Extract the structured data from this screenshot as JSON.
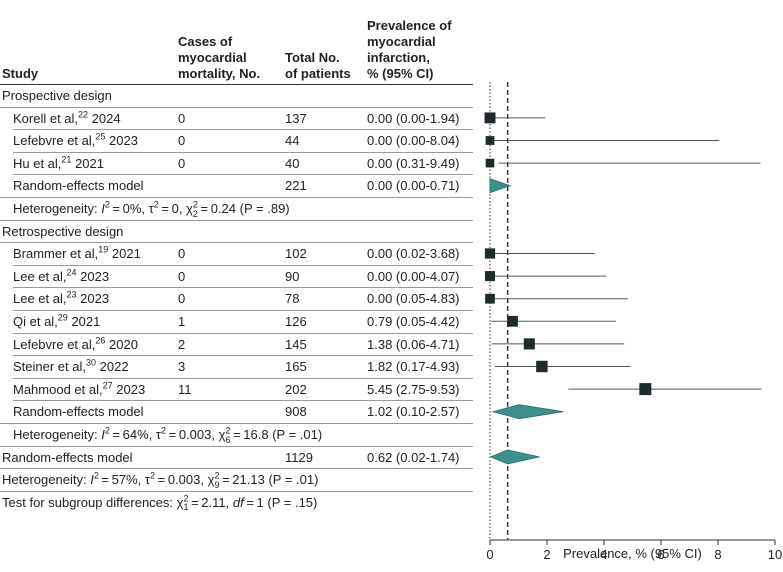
{
  "headers": {
    "study": "Study",
    "cases": "Cases of\nmyocardial\nmortality, No.",
    "total": "Total No.\nof patients",
    "prevalence": "Prevalence of\nmyocardial\ninfarction,\n% (95% CI)"
  },
  "sections": [
    {
      "title": "Prospective design",
      "studies": [
        {
          "name": "Korell et al,",
          "ref": "22",
          "year": "2024",
          "cases": "0",
          "total": "137",
          "ci_text": "0.00 (0.00-1.94)"
        },
        {
          "name": "Lefebvre et al,",
          "ref": "25",
          "year": "2023",
          "cases": "0",
          "total": "44",
          "ci_text": "0.00 (0.00-8.04)"
        },
        {
          "name": "Hu et al,",
          "ref": "21",
          "year": "2021",
          "cases": "0",
          "total": "40",
          "ci_text": "0.00 (0.31-9.49)"
        }
      ],
      "pooled": {
        "label": "Random-effects model",
        "total": "221",
        "ci_text": "0.00 (0.00-0.71)"
      },
      "heterogeneity": {
        "label": "Heterogeneity:",
        "i2": "0%",
        "tau2": "0",
        "chi_df": "2",
        "chi_val": "0.24",
        "p": "(P = .89)"
      }
    },
    {
      "title": "Retrospective design",
      "studies": [
        {
          "name": "Brammer et al,",
          "ref": "19",
          "year": "2021",
          "cases": "0",
          "total": "102",
          "ci_text": "0.00 (0.02-3.68)"
        },
        {
          "name": "Lee et al,",
          "ref": "24",
          "year": "2023",
          "cases": "0",
          "total": "90",
          "ci_text": "0.00 (0.00-4.07)"
        },
        {
          "name": "Lee et al,",
          "ref": "23",
          "year": "2023",
          "cases": "0",
          "total": "78",
          "ci_text": "0.00 (0.05-4.83)"
        },
        {
          "name": "Qi et al,",
          "ref": "29",
          "year": "2021",
          "cases": "1",
          "total": "126",
          "ci_text": "0.79 (0.05-4.42)"
        },
        {
          "name": "Lefebvre et al,",
          "ref": "26",
          "year": "2020",
          "cases": "2",
          "total": "145",
          "ci_text": "1.38 (0.06-4.71)"
        },
        {
          "name": "Steiner et al,",
          "ref": "30",
          "year": "2022",
          "cases": "3",
          "total": "165",
          "ci_text": "1.82 (0.17-4.93)"
        },
        {
          "name": "Mahmood et al,",
          "ref": "27",
          "year": "2023",
          "cases": "11",
          "total": "202",
          "ci_text": "5.45 (2.75-9.53)"
        }
      ],
      "pooled": {
        "label": "Random-effects model",
        "total": "908",
        "ci_text": "1.02 (0.10-2.57)"
      },
      "heterogeneity": {
        "label": "Heterogeneity:",
        "i2": "64%",
        "tau2": "0.003",
        "chi_df": "6",
        "chi_val": "16.8",
        "p": "(P = .01)"
      }
    }
  ],
  "overall": {
    "label": "Random-effects model",
    "total": "1129",
    "ci_text": "0.62 (0.02-1.74)",
    "heterogeneity": {
      "label": "Heterogeneity:",
      "i2": "57%",
      "tau2": "0.003",
      "chi_df": "9",
      "chi_val": "21.13",
      "p": "(P = .01)"
    }
  },
  "subgroup_test": {
    "label": "Test for subgroup differences:",
    "chi_df": "1",
    "chi_val": "2.11",
    "df_label": "df",
    "df_val": "1",
    "p": "(P = .15)"
  },
  "chart_data": {
    "type": "forest",
    "xlabel": "Prevalence, % (95% CI)",
    "xlim": [
      0,
      10
    ],
    "ticks": [
      0,
      2,
      4,
      6,
      8,
      10
    ],
    "tick_labels": [
      "0",
      "2",
      "4",
      "6",
      "8",
      "10"
    ],
    "overall_estimate": 0.62,
    "null_value": 0,
    "study_points": [
      {
        "label": "Korell et al 2024",
        "est": 0.0,
        "lo": 0.0,
        "hi": 1.94,
        "weight": 137
      },
      {
        "label": "Lefebvre et al 2023",
        "est": 0.0,
        "lo": 0.0,
        "hi": 8.04,
        "weight": 44
      },
      {
        "label": "Hu et al 2021",
        "est": 0.0,
        "lo": 0.31,
        "hi": 9.49,
        "weight": 40
      },
      {
        "label": "Brammer et al 2021",
        "est": 0.0,
        "lo": 0.02,
        "hi": 3.68,
        "weight": 102
      },
      {
        "label": "Lee et al 2023 (24)",
        "est": 0.0,
        "lo": 0.0,
        "hi": 4.07,
        "weight": 90
      },
      {
        "label": "Lee et al 2023 (23)",
        "est": 0.0,
        "lo": 0.05,
        "hi": 4.83,
        "weight": 78
      },
      {
        "label": "Qi et al 2021",
        "est": 0.79,
        "lo": 0.05,
        "hi": 4.42,
        "weight": 126
      },
      {
        "label": "Lefebvre et al 2020",
        "est": 1.38,
        "lo": 0.06,
        "hi": 4.71,
        "weight": 145
      },
      {
        "label": "Steiner et al 2022",
        "est": 1.82,
        "lo": 0.17,
        "hi": 4.93,
        "weight": 165
      },
      {
        "label": "Mahmood et al 2023",
        "est": 5.45,
        "lo": 2.75,
        "hi": 9.53,
        "weight": 202
      }
    ],
    "pooled": [
      {
        "label": "Prospective random-effects model",
        "est": 0.0,
        "lo": 0.0,
        "hi": 0.71
      },
      {
        "label": "Retrospective random-effects model",
        "est": 1.02,
        "lo": 0.1,
        "hi": 2.57
      },
      {
        "label": "Overall random-effects model",
        "est": 0.62,
        "lo": 0.02,
        "hi": 1.74
      }
    ]
  },
  "colors": {
    "square": "#1c2b2b",
    "diamond": "#3d8f8b",
    "diamond_stroke": "#2b6e6a",
    "line": "#555555"
  }
}
